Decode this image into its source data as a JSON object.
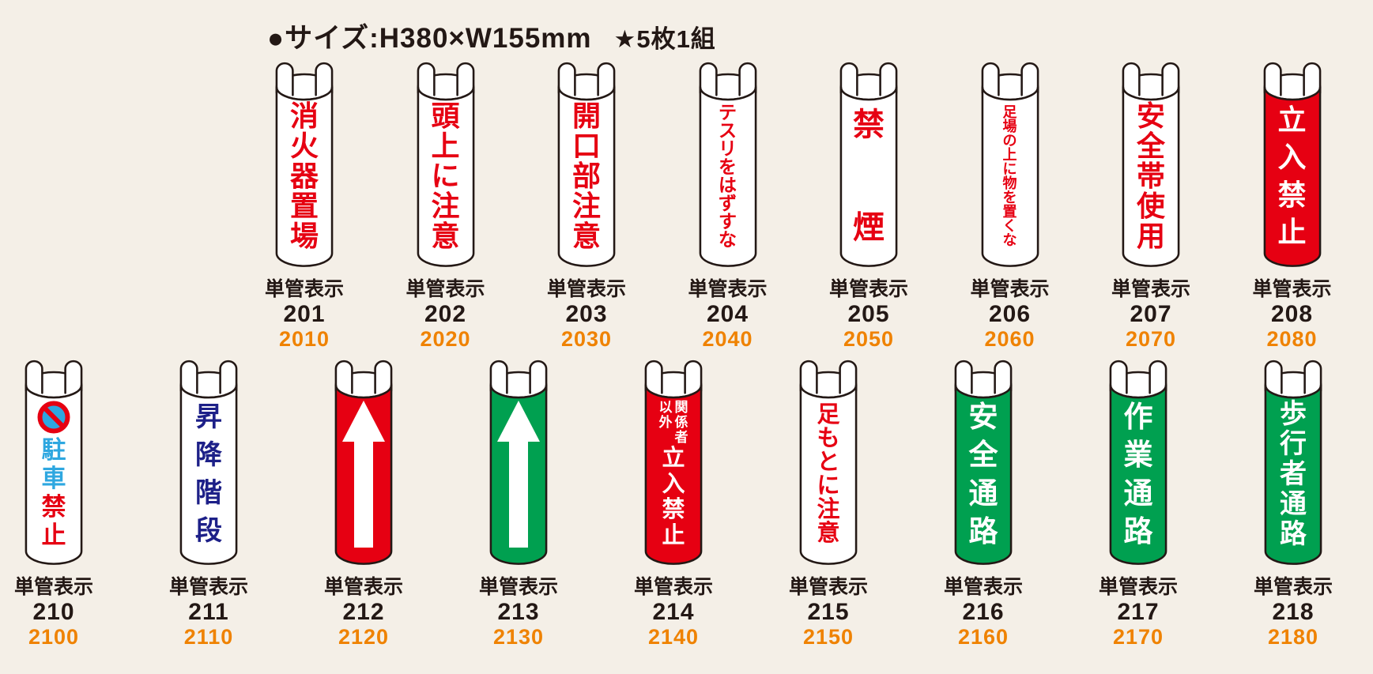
{
  "header": {
    "size_label": "●サイズ:H380×W155mm",
    "set_label": "★5枚1組"
  },
  "sign_series_label": "単管表示",
  "colors": {
    "red": "#e60012",
    "green": "#00a050",
    "navy": "#1d2088",
    "light_blue": "#2ea7e0",
    "orange": "#ef8200",
    "white": "#ffffff",
    "ink": "#231815",
    "background": "#f4efe7"
  },
  "rows": [
    {
      "items": [
        {
          "num": "201",
          "code": "2010",
          "body": "white",
          "segments": [
            {
              "text": "消火器置場",
              "color": "red"
            }
          ],
          "font": 36,
          "justify": "center",
          "gap": 2
        },
        {
          "num": "202",
          "code": "2020",
          "body": "white",
          "segments": [
            {
              "text": "頭上に注意",
              "color": "red"
            }
          ],
          "font": 36,
          "justify": "center",
          "gap": 2
        },
        {
          "num": "203",
          "code": "2030",
          "body": "white",
          "segments": [
            {
              "text": "開口部注意",
              "color": "red"
            }
          ],
          "font": 36,
          "justify": "center",
          "gap": 2
        },
        {
          "num": "204",
          "code": "2040",
          "body": "white",
          "segments": [
            {
              "text": "テスリをはずすな",
              "color": "red"
            }
          ],
          "font": 23,
          "justify": "center",
          "gap": 0
        },
        {
          "num": "205",
          "code": "2050",
          "body": "white",
          "segments": [
            {
              "text": "禁煙",
              "color": "red"
            }
          ],
          "font": 40,
          "justify": "between",
          "pad": 10
        },
        {
          "num": "206",
          "code": "2060",
          "body": "white",
          "segments": [
            {
              "text": "足場の上に物を置くな",
              "color": "red"
            }
          ],
          "font": 18,
          "justify": "center",
          "gap": 0
        },
        {
          "num": "207",
          "code": "2070",
          "body": "white",
          "segments": [
            {
              "text": "安全帯使用",
              "color": "red"
            }
          ],
          "font": 36,
          "justify": "center",
          "gap": 2
        },
        {
          "num": "208",
          "code": "2080",
          "body": "red",
          "segments": [
            {
              "text": "立入禁止",
              "color": "white"
            }
          ],
          "font": 36,
          "justify": "between",
          "pad": 6
        }
      ]
    },
    {
      "items": [
        {
          "num": "210",
          "code": "2100",
          "body": "white",
          "icon": "no-parking",
          "segments": [
            {
              "text": "駐車",
              "color": "light_blue"
            },
            {
              "text": "禁止",
              "color": "red"
            }
          ],
          "font": 31,
          "justify": "between",
          "pad": 2
        },
        {
          "num": "211",
          "code": "2110",
          "body": "white",
          "segments": [
            {
              "text": "昇降階段",
              "color": "navy"
            }
          ],
          "font": 34,
          "justify": "between",
          "pad": 6
        },
        {
          "num": "212",
          "code": "2120",
          "body": "red",
          "content": "arrow"
        },
        {
          "num": "213",
          "code": "2130",
          "body": "green",
          "content": "arrow"
        },
        {
          "num": "214",
          "code": "2140",
          "body": "red",
          "top_columns": [
            "関係者",
            "以外"
          ],
          "sub_color": "white",
          "segments": [
            {
              "text": "立入禁止",
              "color": "white"
            }
          ],
          "font": 29,
          "justify": "between",
          "pad": 2
        },
        {
          "num": "215",
          "code": "2150",
          "body": "white",
          "segments": [
            {
              "text": "足もとに注意",
              "color": "red"
            }
          ],
          "font": 29,
          "justify": "center",
          "gap": 1
        },
        {
          "num": "216",
          "code": "2160",
          "body": "green",
          "segments": [
            {
              "text": "安全通路",
              "color": "white"
            }
          ],
          "font": 37,
          "justify": "between",
          "pad": 4
        },
        {
          "num": "217",
          "code": "2170",
          "body": "green",
          "segments": [
            {
              "text": "作業通路",
              "color": "white"
            }
          ],
          "font": 37,
          "justify": "between",
          "pad": 4
        },
        {
          "num": "218",
          "code": "2180",
          "body": "green",
          "segments": [
            {
              "text": "歩行者通路",
              "color": "white"
            }
          ],
          "font": 34,
          "justify": "between",
          "pad": 2
        }
      ]
    }
  ]
}
